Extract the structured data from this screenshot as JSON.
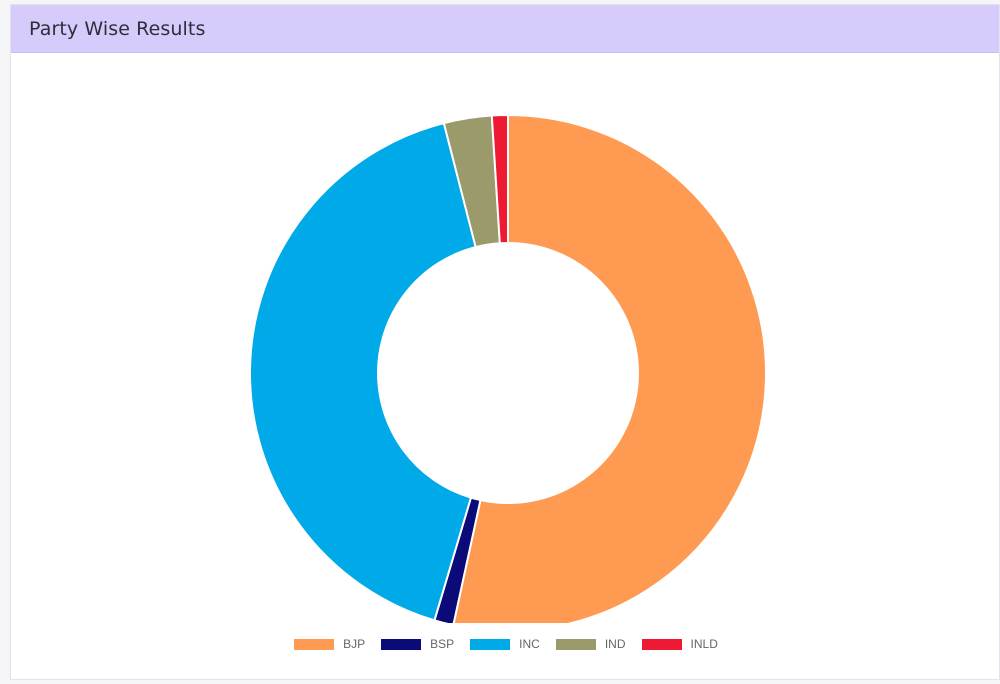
{
  "header": {
    "title": "Party Wise Results"
  },
  "chart_data": {
    "type": "pie",
    "variant": "doughnut",
    "categories": [
      "BJP",
      "BSP",
      "INC",
      "IND",
      "INLD"
    ],
    "values": [
      53.4,
      1.2,
      41.4,
      3.0,
      1.0
    ],
    "colors": [
      "#ff9a52",
      "#0a0a78",
      "#00a9e8",
      "#9a9a6a",
      "#ee1a33"
    ],
    "legend_position": "bottom"
  }
}
